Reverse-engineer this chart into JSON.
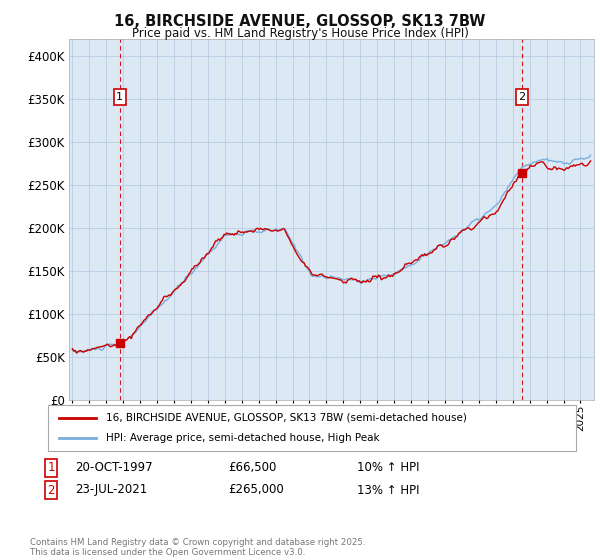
{
  "title": "16, BIRCHSIDE AVENUE, GLOSSOP, SK13 7BW",
  "subtitle": "Price paid vs. HM Land Registry's House Price Index (HPI)",
  "legend_label1": "16, BIRCHSIDE AVENUE, GLOSSOP, SK13 7BW (semi-detached house)",
  "legend_label2": "HPI: Average price, semi-detached house, High Peak",
  "marker1_date_str": "20-OCT-1997",
  "marker1_price": 66500,
  "marker1_hpi_str": "10% ↑ HPI",
  "marker1_x": 1997.8,
  "marker2_date_str": "23-JUL-2021",
  "marker2_price": 265000,
  "marker2_hpi_str": "13% ↑ HPI",
  "marker2_x": 2021.55,
  "line_color": "#cc0000",
  "hpi_color": "#7aaddb",
  "dashed_color": "#cc0000",
  "background_color": "#ffffff",
  "plot_bg_color": "#dce9f5",
  "grid_color": "#b0c8e0",
  "copyright_text": "Contains HM Land Registry data © Crown copyright and database right 2025.\nThis data is licensed under the Open Government Licence v3.0.",
  "ylim_min": 0,
  "ylim_max": 420000,
  "xlim_min": 1994.8,
  "xlim_max": 2025.8,
  "yticks": [
    0,
    50000,
    100000,
    150000,
    200000,
    250000,
    300000,
    350000,
    400000
  ],
  "ytick_labels": [
    "£0",
    "£50K",
    "£100K",
    "£150K",
    "£200K",
    "£250K",
    "£300K",
    "£350K",
    "£400K"
  ]
}
